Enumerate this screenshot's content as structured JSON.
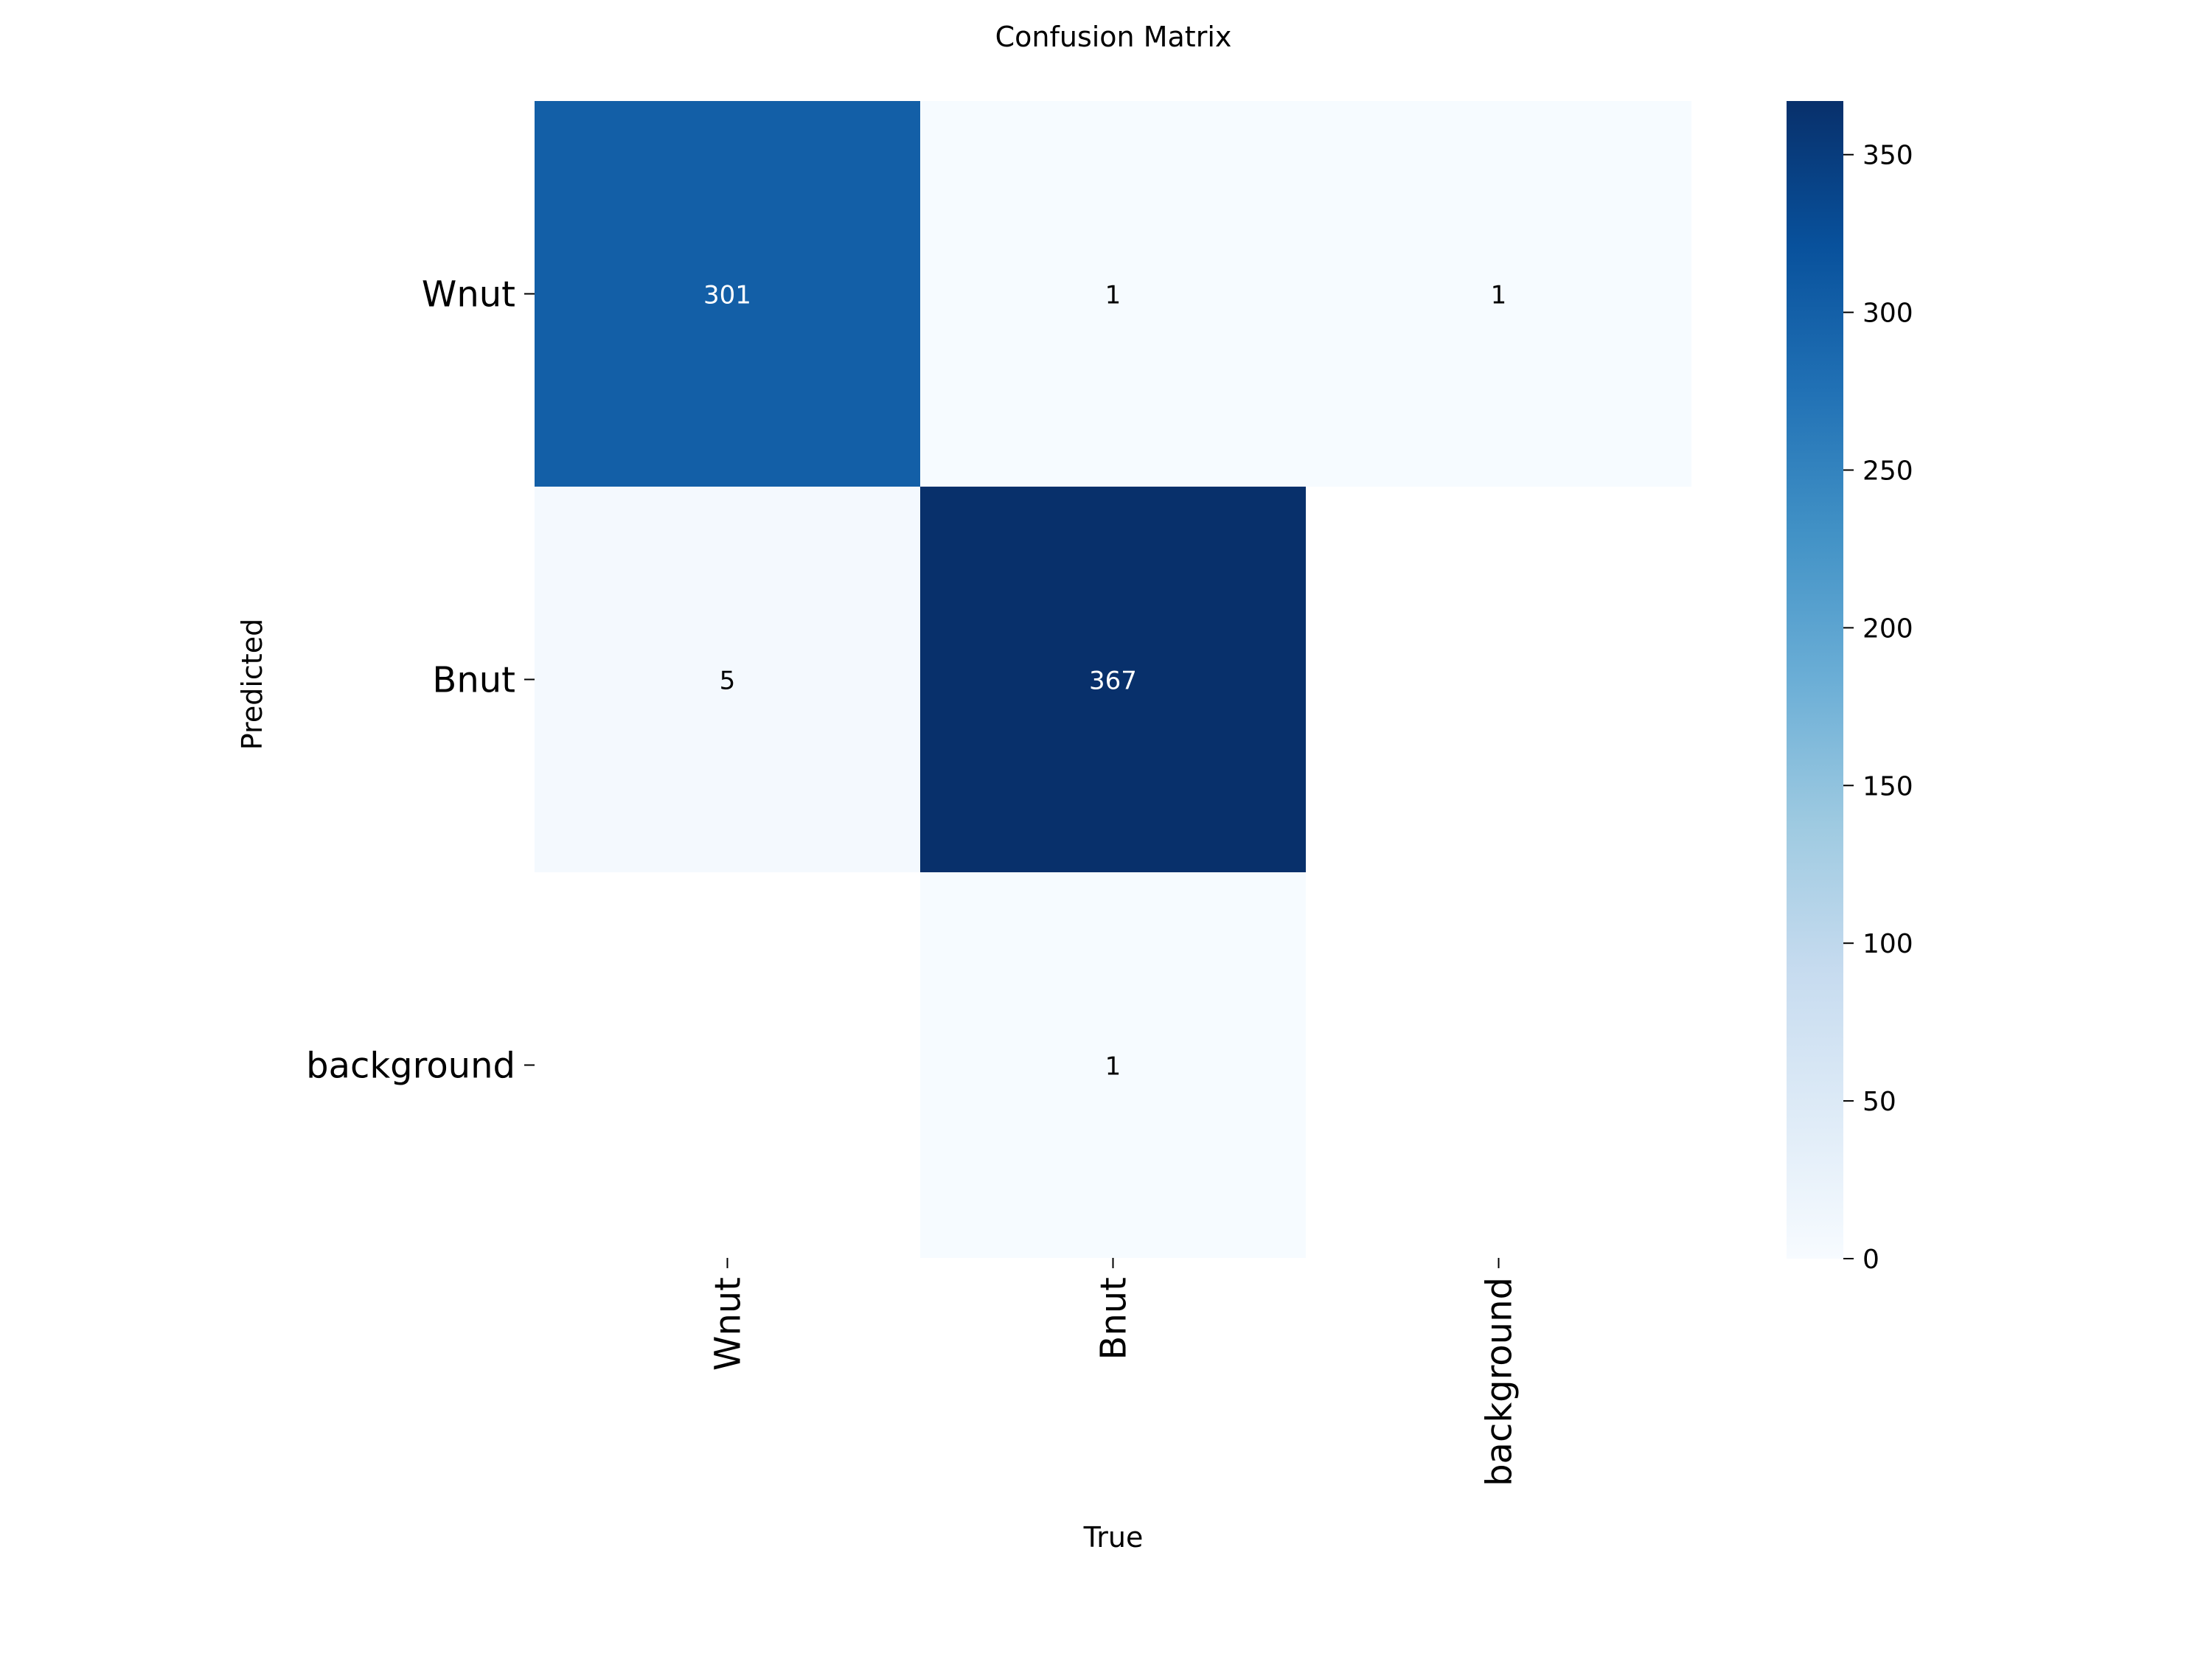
{
  "chart_data": {
    "type": "heatmap",
    "title": "Confusion Matrix",
    "xlabel": "True",
    "ylabel": "Predicted",
    "x_categories": [
      "Wnut",
      "Bnut",
      "background"
    ],
    "y_categories": [
      "Wnut",
      "Bnut",
      "background"
    ],
    "values": [
      [
        301,
        1,
        1
      ],
      [
        5,
        367,
        null
      ],
      [
        null,
        1,
        null
      ]
    ],
    "colorscale": "Blues",
    "colorbar": {
      "range": [
        0,
        367
      ],
      "ticks": [
        0,
        50,
        100,
        150,
        200,
        250,
        300,
        350
      ]
    },
    "grid": false
  }
}
